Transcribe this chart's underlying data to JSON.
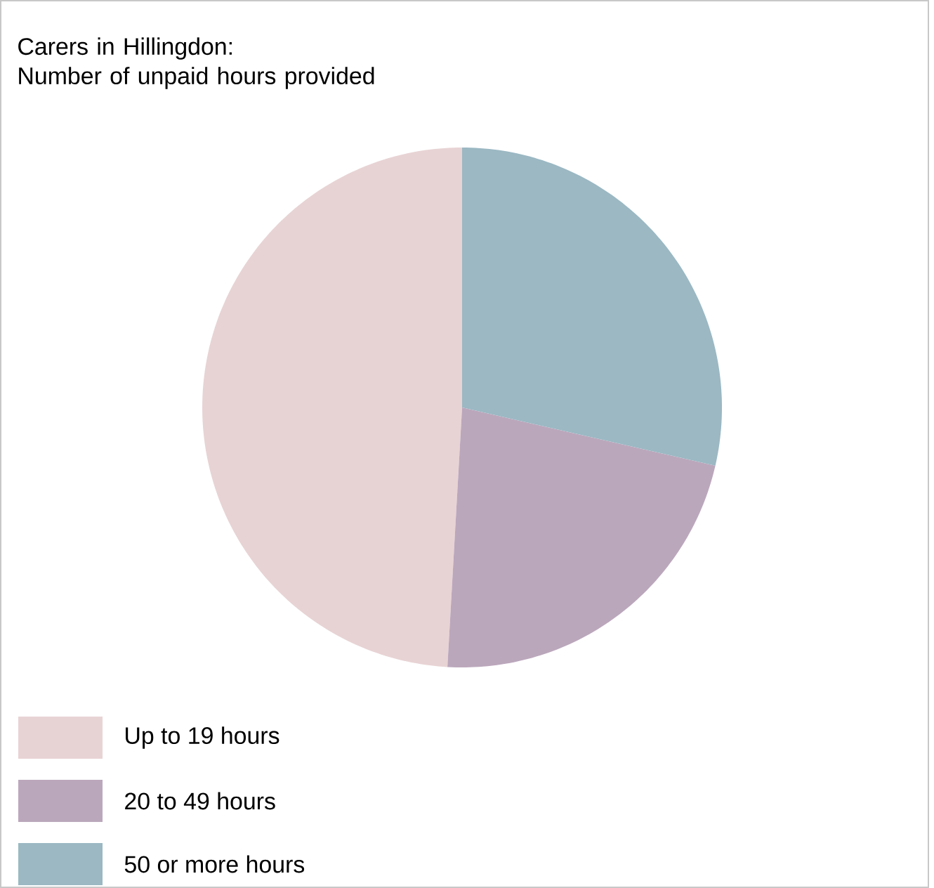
{
  "chart_data": {
    "type": "pie",
    "title": "Carers in Hillingdon:\nNumber of unpaid hours provided",
    "categories": [
      "Up to 19 hours",
      "20 to 49 hours",
      "50 or more hours"
    ],
    "values": [
      49.1,
      22.3,
      28.6
    ],
    "colors": [
      "#e8d3d4",
      "#bba7bc",
      "#9bb8c3"
    ],
    "legend": "bottom"
  }
}
